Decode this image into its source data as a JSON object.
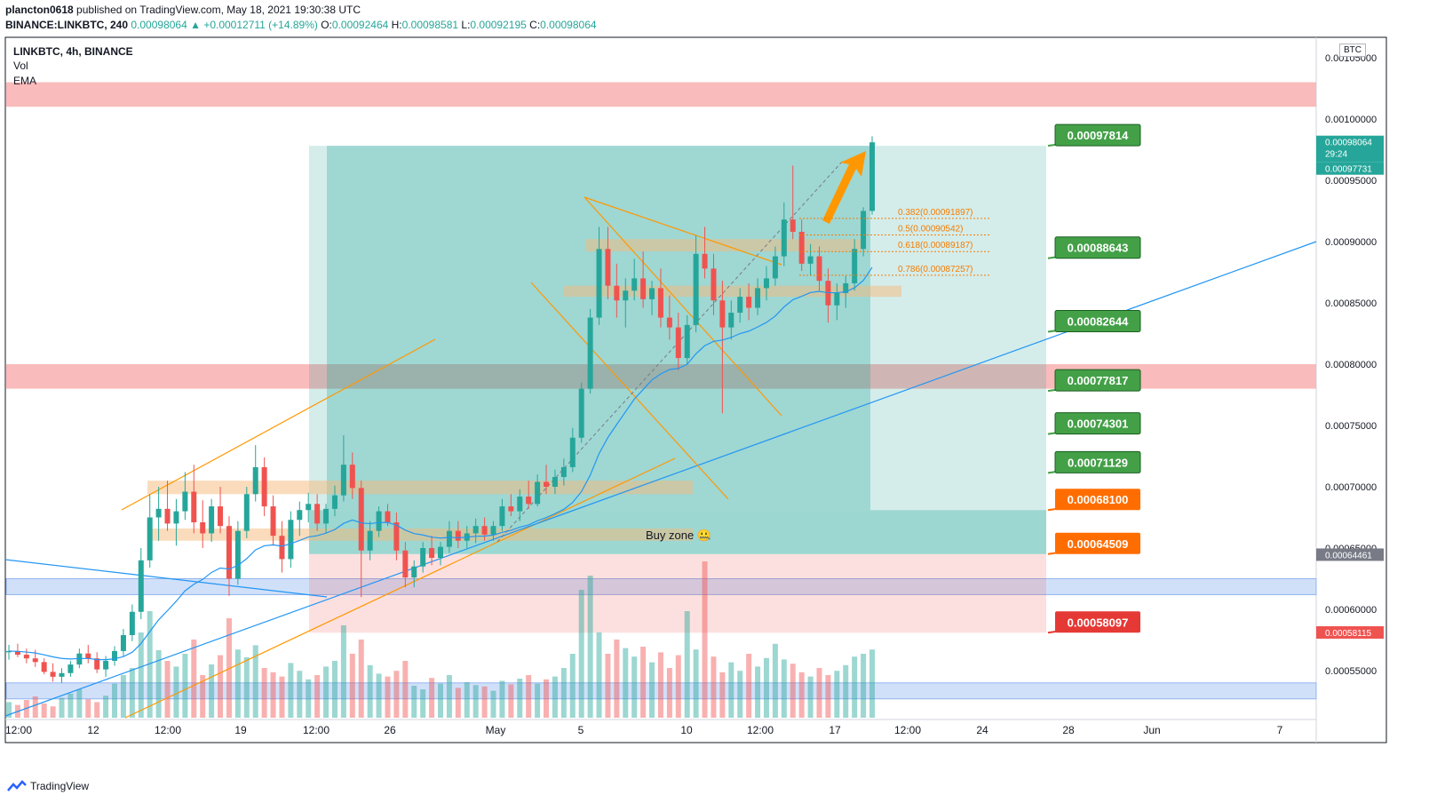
{
  "header": {
    "author": "plancton0618",
    "published": "published on TradingView.com, May 18, 2021 19:30:38 UTC",
    "symbol": "BINANCE:LINKBTC, 240",
    "last": "0.00098064",
    "change": "▲ +0.00012711 (+14.89%)",
    "o_label": "O:",
    "o": "0.00092464",
    "h_label": "H:",
    "h": "0.00098581",
    "l_label": "L:",
    "l": "0.00092195",
    "c_label": "C:",
    "c": "0.00098064"
  },
  "legend": {
    "title": "LINKBTC, 4h, BINANCE",
    "vol": "Vol",
    "ema": "EMA"
  },
  "currency_badge": "BTC",
  "footer": {
    "brand": "TradingView",
    "icon": "tradingview-logo-icon"
  },
  "colors": {
    "up": "#26a69a",
    "down": "#ef5350",
    "ema": "#2196f3",
    "resistance_zone": "#f8b4b4",
    "support_zone": "#c9daf8",
    "target_green": "#43a047",
    "target_orange": "#ff6d00",
    "target_red": "#e53935",
    "trend_orange": "#ff9800",
    "fib": "#f57c00"
  },
  "chart_data": {
    "type": "candlestick",
    "title": "",
    "price_axis": {
      "ticks": [
        "0.00105000",
        "0.00100000",
        "0.00095000",
        "0.00090000",
        "0.00085000",
        "0.00080000",
        "0.00075000",
        "0.00070000",
        "0.00065000",
        "0.00060000",
        "0.00055000"
      ],
      "ylim": [
        0.00051,
        0.00106
      ]
    },
    "time_axis": {
      "ticks": [
        "12:00",
        "12",
        "12:00",
        "19",
        "12:00",
        "26",
        "May",
        "5",
        "10",
        "12:00",
        "17",
        "12:00",
        "24",
        "28",
        "Jun",
        "7"
      ]
    },
    "price_badges": [
      {
        "value": "0.00098064",
        "sub": "29:24",
        "kind": "last"
      },
      {
        "value": "0.00097731",
        "kind": "ema"
      },
      {
        "value": "0.00064461",
        "kind": "level"
      },
      {
        "value": "0.00058115",
        "kind": "level-red"
      }
    ],
    "targets": [
      {
        "label": "0.00097814",
        "value": 0.00097814,
        "color": "green"
      },
      {
        "label": "0.00088643",
        "value": 0.00088643,
        "color": "green"
      },
      {
        "label": "0.00082644",
        "value": 0.00082644,
        "color": "green"
      },
      {
        "label": "0.00077817",
        "value": 0.00077817,
        "color": "green"
      },
      {
        "label": "0.00074301",
        "value": 0.00074301,
        "color": "green"
      },
      {
        "label": "0.00071129",
        "value": 0.00071129,
        "color": "green"
      },
      {
        "label": "0.00068100",
        "value": 0.000681,
        "color": "orange"
      },
      {
        "label": "0.00064509",
        "value": 0.00064509,
        "color": "orange"
      },
      {
        "label": "0.00058097",
        "value": 0.00058097,
        "color": "red"
      }
    ],
    "fib_levels": [
      {
        "label": "0.382(0.00091897)",
        "value": 0.00091897
      },
      {
        "label": "0.5(0.00090542)",
        "value": 0.00090542
      },
      {
        "label": "0.618(0.00089187)",
        "value": 0.00089187
      },
      {
        "label": "0.786(0.00087257)",
        "value": 0.00087257
      }
    ],
    "zones": [
      {
        "kind": "resistance",
        "from": 0.00101,
        "to": 0.00103
      },
      {
        "kind": "resistance",
        "from": 0.00078,
        "to": 0.0008
      },
      {
        "kind": "support",
        "from": 0.000612,
        "to": 0.000625
      },
      {
        "kind": "support",
        "from": 0.000527,
        "to": 0.00054
      }
    ],
    "annotation": {
      "text": "Buy zone",
      "emoji": "🤐",
      "value": 0.00066
    },
    "candles": [
      [
        0.000565,
        0.000571,
        0.000559,
        0.000566
      ],
      [
        0.000566,
        0.000572,
        0.000561,
        0.000563
      ],
      [
        0.000563,
        0.000568,
        0.000556,
        0.00056
      ],
      [
        0.00056,
        0.000567,
        0.000553,
        0.000557
      ],
      [
        0.000557,
        0.00056,
        0.000547,
        0.000549
      ],
      [
        0.000549,
        0.000556,
        0.000541,
        0.000545
      ],
      [
        0.000545,
        0.000552,
        0.00054,
        0.000548
      ],
      [
        0.000548,
        0.000558,
        0.000545,
        0.000555
      ],
      [
        0.000555,
        0.000568,
        0.000552,
        0.000564
      ],
      [
        0.000564,
        0.000571,
        0.000556,
        0.00056
      ],
      [
        0.00056,
        0.000565,
        0.000548,
        0.000551
      ],
      [
        0.000551,
        0.000562,
        0.000545,
        0.000558
      ],
      [
        0.000558,
        0.00057,
        0.000554,
        0.000566
      ],
      [
        0.000566,
        0.000584,
        0.000562,
        0.000579
      ],
      [
        0.000579,
        0.000604,
        0.000574,
        0.000598
      ],
      [
        0.000598,
        0.00065,
        0.000592,
        0.00064
      ],
      [
        0.00064,
        0.000694,
        0.000634,
        0.000675
      ],
      [
        0.000675,
        0.0007,
        0.000656,
        0.000682
      ],
      [
        0.000682,
        0.000705,
        0.000664,
        0.00067
      ],
      [
        0.00067,
        0.00069,
        0.000652,
        0.00068
      ],
      [
        0.00068,
        0.000712,
        0.000673,
        0.000696
      ],
      [
        0.000696,
        0.000718,
        0.000662,
        0.000671
      ],
      [
        0.000671,
        0.000689,
        0.00065,
        0.000662
      ],
      [
        0.000662,
        0.00069,
        0.000655,
        0.000684
      ],
      [
        0.000684,
        0.0007,
        0.000662,
        0.000668
      ],
      [
        0.000668,
        0.000676,
        0.000611,
        0.000625
      ],
      [
        0.000625,
        0.000672,
        0.00062,
        0.000664
      ],
      [
        0.000664,
        0.0007,
        0.000658,
        0.000694
      ],
      [
        0.000694,
        0.000734,
        0.000688,
        0.000716
      ],
      [
        0.000716,
        0.000724,
        0.000676,
        0.000684
      ],
      [
        0.000684,
        0.000693,
        0.000652,
        0.00066
      ],
      [
        0.00066,
        0.000672,
        0.00063,
        0.000641
      ],
      [
        0.000641,
        0.00068,
        0.000634,
        0.000673
      ],
      [
        0.000673,
        0.000688,
        0.00066,
        0.000681
      ],
      [
        0.000681,
        0.000695,
        0.000671,
        0.000686
      ],
      [
        0.000686,
        0.000694,
        0.000664,
        0.00067
      ],
      [
        0.00067,
        0.000686,
        0.000662,
        0.000682
      ],
      [
        0.000682,
        0.000701,
        0.000676,
        0.000693
      ],
      [
        0.000693,
        0.000742,
        0.000688,
        0.000718
      ],
      [
        0.000718,
        0.000728,
        0.00069,
        0.000699
      ],
      [
        0.000699,
        0.000705,
        0.00061,
        0.000648
      ],
      [
        0.000648,
        0.000672,
        0.00064,
        0.000664
      ],
      [
        0.000664,
        0.000684,
        0.000659,
        0.00068
      ],
      [
        0.00068,
        0.000686,
        0.000668,
        0.000671
      ],
      [
        0.000671,
        0.000679,
        0.00064,
        0.000648
      ],
      [
        0.000648,
        0.000655,
        0.000618,
        0.000626
      ],
      [
        0.000626,
        0.00064,
        0.000618,
        0.000635
      ],
      [
        0.000635,
        0.000655,
        0.00063,
        0.00065
      ],
      [
        0.00065,
        0.00066,
        0.000636,
        0.000642
      ],
      [
        0.000642,
        0.000655,
        0.000636,
        0.000651
      ],
      [
        0.000651,
        0.000672,
        0.000646,
        0.000664
      ],
      [
        0.000664,
        0.000672,
        0.00065,
        0.000656
      ],
      [
        0.000656,
        0.000668,
        0.00065,
        0.000662
      ],
      [
        0.000662,
        0.000674,
        0.000654,
        0.000668
      ],
      [
        0.000668,
        0.000675,
        0.000656,
        0.000661
      ],
      [
        0.000661,
        0.000672,
        0.000656,
        0.000668
      ],
      [
        0.000668,
        0.00069,
        0.000664,
        0.000684
      ],
      [
        0.000684,
        0.000694,
        0.000676,
        0.00068
      ],
      [
        0.00068,
        0.000698,
        0.000672,
        0.000692
      ],
      [
        0.000692,
        0.000705,
        0.000682,
        0.000686
      ],
      [
        0.000686,
        0.00071,
        0.000684,
        0.000704
      ],
      [
        0.000704,
        0.000718,
        0.000694,
        0.0007
      ],
      [
        0.0007,
        0.000714,
        0.000694,
        0.000708
      ],
      [
        0.000708,
        0.000723,
        0.000701,
        0.000716
      ],
      [
        0.000716,
        0.000748,
        0.000712,
        0.00074
      ],
      [
        0.00074,
        0.000785,
        0.000736,
        0.00078
      ],
      [
        0.00078,
        0.000845,
        0.000776,
        0.000838
      ],
      [
        0.000838,
        0.000912,
        0.000832,
        0.000894
      ],
      [
        0.000894,
        0.000912,
        0.000853,
        0.000864
      ],
      [
        0.000864,
        0.000882,
        0.000838,
        0.000852
      ],
      [
        0.000852,
        0.00087,
        0.00083,
        0.00086
      ],
      [
        0.00086,
        0.000886,
        0.000852,
        0.00087
      ],
      [
        0.00087,
        0.000892,
        0.000846,
        0.000853
      ],
      [
        0.000853,
        0.000868,
        0.00084,
        0.000862
      ],
      [
        0.000862,
        0.000878,
        0.00083,
        0.000838
      ],
      [
        0.000838,
        0.000856,
        0.00082,
        0.00083
      ],
      [
        0.00083,
        0.000842,
        0.000795,
        0.000805
      ],
      [
        0.000805,
        0.00084,
        0.0008,
        0.000832
      ],
      [
        0.000832,
        0.000905,
        0.000826,
        0.00089
      ],
      [
        0.00089,
        0.000912,
        0.00087,
        0.000878
      ],
      [
        0.000878,
        0.00089,
        0.00084,
        0.000852
      ],
      [
        0.000852,
        0.000868,
        0.00076,
        0.00083
      ],
      [
        0.00083,
        0.000852,
        0.00082,
        0.000842
      ],
      [
        0.000842,
        0.000862,
        0.000834,
        0.000855
      ],
      [
        0.000855,
        0.000866,
        0.000836,
        0.000846
      ],
      [
        0.000846,
        0.00087,
        0.00084,
        0.000862
      ],
      [
        0.000862,
        0.00088,
        0.000852,
        0.00087
      ],
      [
        0.00087,
        0.000896,
        0.000864,
        0.000888
      ],
      [
        0.000888,
        0.000932,
        0.00088,
        0.000918
      ],
      [
        0.000918,
        0.000962,
        0.000902,
        0.000908
      ],
      [
        0.000908,
        0.000918,
        0.000876,
        0.000882
      ],
      [
        0.000882,
        0.000898,
        0.000872,
        0.000888
      ],
      [
        0.000888,
        0.000896,
        0.00086,
        0.000868
      ],
      [
        0.000868,
        0.000878,
        0.000834,
        0.000848
      ],
      [
        0.000848,
        0.000866,
        0.000836,
        0.000858
      ],
      [
        0.000858,
        0.000872,
        0.000846,
        0.000866
      ],
      [
        0.000866,
        0.000902,
        0.00086,
        0.000894
      ],
      [
        0.000894,
        0.000928,
        0.000888,
        0.000925
      ],
      [
        0.000925,
        0.000986,
        0.000922,
        0.000981
      ]
    ],
    "volumes": [
      22,
      18,
      25,
      30,
      20,
      16,
      28,
      34,
      40,
      26,
      22,
      31,
      48,
      60,
      70,
      120,
      150,
      95,
      80,
      72,
      90,
      110,
      60,
      75,
      88,
      140,
      96,
      85,
      102,
      70,
      64,
      58,
      77,
      66,
      54,
      60,
      72,
      80,
      130,
      90,
      110,
      74,
      62,
      58,
      66,
      80,
      45,
      40,
      56,
      48,
      60,
      42,
      50,
      46,
      44,
      38,
      52,
      47,
      55,
      60,
      48,
      54,
      58,
      70,
      90,
      180,
      200,
      120,
      90,
      110,
      98,
      86,
      100,
      78,
      92,
      70,
      88,
      150,
      96,
      220,
      86,
      64,
      78,
      66,
      90,
      72,
      84,
      104,
      82,
      76,
      64,
      58,
      70,
      60,
      66,
      74,
      86,
      90,
      96
    ]
  }
}
